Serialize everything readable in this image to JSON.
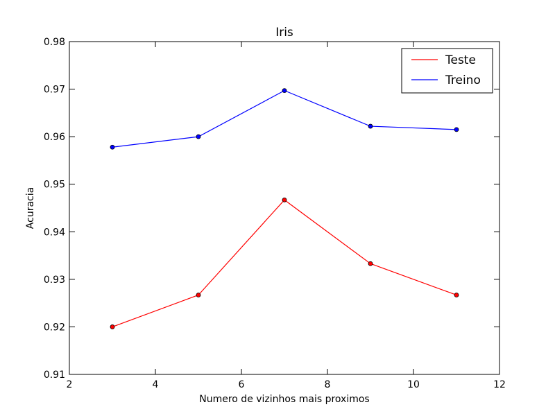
{
  "chart_data": {
    "type": "line",
    "title": "Iris",
    "xlabel": "Numero de vizinhos mais proximos",
    "ylabel": "Acuracia",
    "xlim": [
      2,
      12
    ],
    "ylim": [
      0.91,
      0.98
    ],
    "xticks": [
      2,
      4,
      6,
      8,
      10,
      12
    ],
    "yticks": [
      0.91,
      0.92,
      0.93,
      0.94,
      0.95,
      0.96,
      0.97,
      0.98
    ],
    "x": [
      3,
      5,
      7,
      9,
      11
    ],
    "series": [
      {
        "name": "Teste",
        "color": "#ff0000",
        "values": [
          0.92,
          0.9267,
          0.9467,
          0.9333,
          0.9267
        ]
      },
      {
        "name": "Treino",
        "color": "#0000ff",
        "values": [
          0.9578,
          0.96,
          0.9697,
          0.9622,
          0.9615
        ]
      }
    ],
    "grid": false,
    "legend": "top-right"
  }
}
